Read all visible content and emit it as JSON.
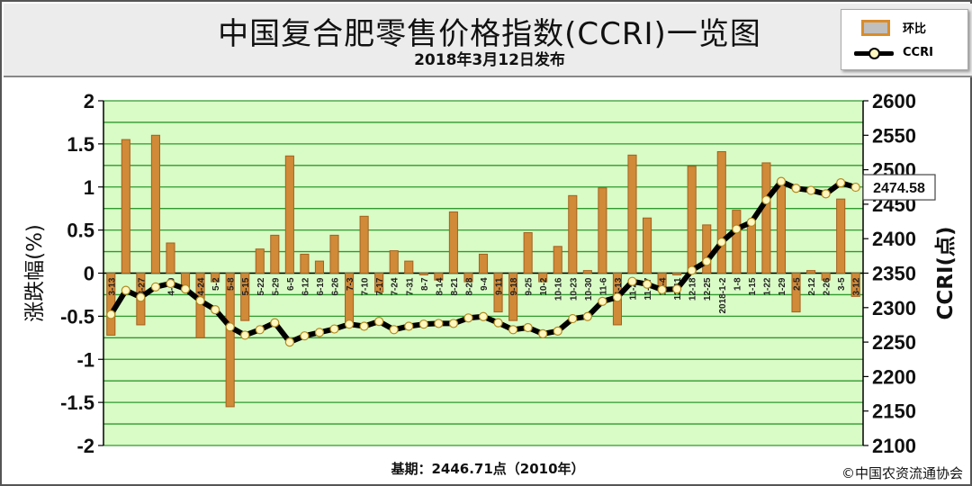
{
  "header": {
    "title": "中国复合肥零售价格指数(CCRI)一览图",
    "subtitle": "2018年3月12日发布"
  },
  "legend": {
    "bar_label": "环比",
    "line_label": "CCRI"
  },
  "footer": {
    "basis": "基期：2446.71点（2010年）",
    "copyright": "©中国农资流通协会"
  },
  "callout": "2474.58",
  "chart_data": {
    "type": "bar+line",
    "ylabel": "涨跌幅(%)",
    "y2label": "CCRI(点)",
    "ylim": [
      -2,
      2
    ],
    "yticks": [
      2,
      1.5,
      1,
      0.5,
      0,
      -0.5,
      -1,
      -1.5,
      -2
    ],
    "y2lim": [
      2100,
      2600
    ],
    "y2ticks": [
      2600,
      2550,
      2500,
      2450,
      2400,
      2350,
      2300,
      2250,
      2200,
      2150,
      2100
    ],
    "grid": true,
    "legend_position": "top-right",
    "colors": {
      "plot_background": "#d9fbc6",
      "grid": "#2e9a2e",
      "bar_fill": "#d08a38",
      "bar_edge": "#a4611f",
      "line": "#000000",
      "marker_fill": "#fff7c0"
    },
    "categories": [
      "3-13",
      "",
      "3-27",
      "",
      "4-10",
      "",
      "4-24",
      "5-2",
      "5-8",
      "5-15",
      "5-22",
      "5-29",
      "6-5",
      "6-12",
      "6-19",
      "6-26",
      "7-3",
      "7-10",
      "7-17",
      "7-24",
      "7-31",
      "8-7",
      "8-14",
      "8-21",
      "8-28",
      "9-4",
      "9-11",
      "9-18",
      "9-25",
      "10-2",
      "10-16",
      "10-23",
      "10-30",
      "11-6",
      "11-13",
      "11-20",
      "11-27",
      "12-4",
      "12-11",
      "12-18",
      "12-25",
      "2018-1-2",
      "1-8",
      "1-15",
      "1-22",
      "1-29",
      "2-5",
      "2-12",
      "2-26",
      "3-5",
      "3-12"
    ],
    "series": [
      {
        "name": "环比",
        "type": "bar",
        "values": [
          -0.72,
          1.55,
          -0.6,
          1.6,
          0.35,
          -0.2,
          -0.75,
          -0.1,
          -1.55,
          -0.55,
          0.28,
          0.44,
          1.36,
          0.22,
          0.14,
          0.44,
          -0.6,
          0.66,
          -0.22,
          0.26,
          0.14,
          -0.02,
          -0.08,
          0.71,
          -0.1,
          0.22,
          -0.45,
          -0.55,
          0.47,
          -0.1,
          0.31,
          0.9,
          0.03,
          0.99,
          -0.6,
          1.37,
          0.64,
          -0.2,
          -0.02,
          1.24,
          0.56,
          1.41,
          0.73,
          0.6,
          1.28,
          1.07,
          -0.45,
          0.03,
          -0.08,
          0.86,
          -0.27
        ]
      },
      {
        "name": "CCRI",
        "type": "line",
        "values": [
          2290,
          2325,
          2315,
          2330,
          2335,
          2327,
          2310,
          2297,
          2272,
          2260,
          2268,
          2278,
          2250,
          2259,
          2264,
          2269,
          2276,
          2273,
          2280,
          2268,
          2273,
          2276,
          2277,
          2277,
          2285,
          2287,
          2278,
          2268,
          2271,
          2262,
          2266,
          2284,
          2287,
          2309,
          2315,
          2338,
          2334,
          2326,
          2327,
          2354,
          2367,
          2395,
          2414,
          2424,
          2456,
          2483,
          2473,
          2470,
          2465,
          2481,
          2474.58
        ]
      }
    ]
  }
}
